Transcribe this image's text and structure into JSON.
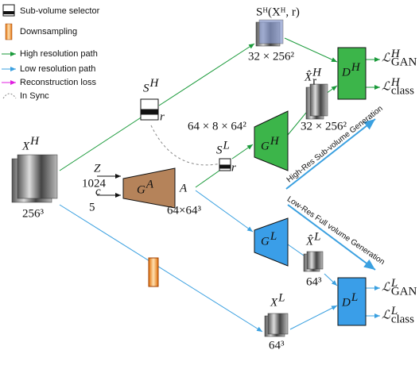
{
  "legend": {
    "items": [
      "Sub-volume selector",
      "Downsampling",
      "High resolution path",
      "Low resolution path",
      "Reconstruction loss",
      "In Sync"
    ]
  },
  "labels": {
    "sh_xh_r": "Sᴴ(Xᴴ, r)",
    "dims_sub_a": "32 × 256²",
    "xhat_r_h": {
      "base": "X̂",
      "sup": "H",
      "sub": "r"
    },
    "dh": {
      "base": "D",
      "sup": "H"
    },
    "l_h_gan": {
      "base": "ℒ",
      "sup": "H",
      "sub": "GAN"
    },
    "l_h_class": {
      "base": "ℒ",
      "sup": "H",
      "sub": "class"
    },
    "dims_sub_b": "32 × 256²",
    "sh": {
      "base": "S",
      "sup": "H"
    },
    "r1": "r",
    "dims_gh_in": "64 × 8 × 64²",
    "gh": {
      "base": "G",
      "sup": "H"
    },
    "sl": {
      "base": "S",
      "sup": "L"
    },
    "r2": "r",
    "xh": {
      "base": "X",
      "sup": "H"
    },
    "dims_xh": "256³",
    "z": "Z",
    "z_dim": "1024",
    "c": "c",
    "c_dim": "5",
    "ga": {
      "base": "G",
      "sup": "A"
    },
    "a": "A",
    "dims_a": "64×64³",
    "high_res_gen": "High-Res Sub-volume Generation",
    "low_res_gen": "Low-Res Full volume Generation",
    "gl": {
      "base": "G",
      "sup": "L"
    },
    "xhat_l": {
      "base": "X̂",
      "sup": "L"
    },
    "dims_xhat_l": "64³",
    "dl": {
      "base": "D",
      "sup": "L"
    },
    "l_l_gan": {
      "base": "ℒ",
      "sup": "L",
      "sub": "GAN"
    },
    "l_l_class": {
      "base": "ℒ",
      "sup": "L",
      "sub": "class"
    },
    "xl": {
      "base": "X",
      "sup": "L"
    },
    "dims_xl": "64³"
  }
}
